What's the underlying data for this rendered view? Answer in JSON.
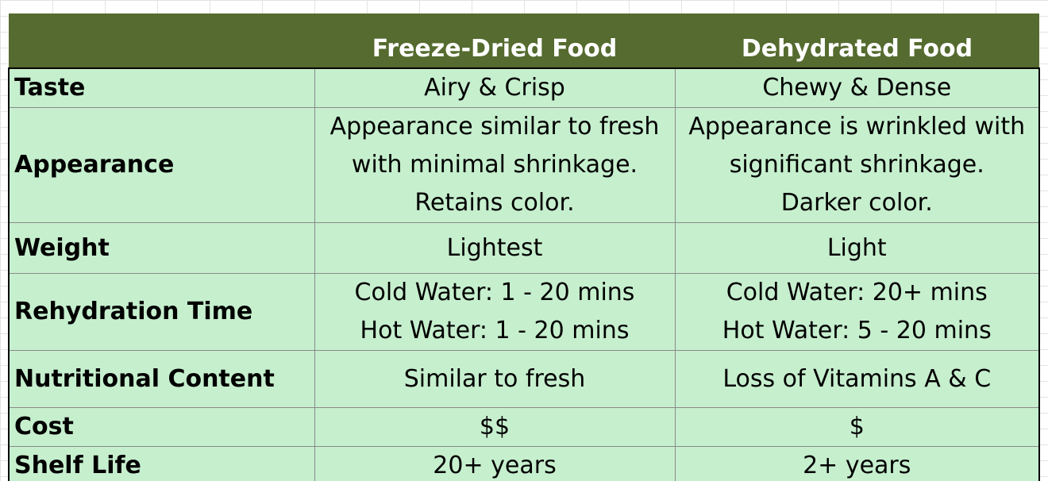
{
  "table": {
    "header": {
      "col1": "Freeze-Dried Food",
      "col2": "Dehydrated Food"
    },
    "rows": [
      {
        "label": "Taste",
        "freeze_dried": [
          "Airy & Crisp"
        ],
        "dehydrated": [
          "Chewy & Dense"
        ]
      },
      {
        "label": "Appearance",
        "freeze_dried": [
          "Appearance similar to fresh",
          "with minimal shrinkage.",
          "Retains color."
        ],
        "dehydrated": [
          "Appearance is wrinkled with",
          "significant shrinkage.",
          "Darker color."
        ]
      },
      {
        "label": "Weight",
        "freeze_dried": [
          "Lightest"
        ],
        "dehydrated": [
          "Light"
        ]
      },
      {
        "label": "Rehydration Time",
        "freeze_dried": [
          "Cold Water: 1 - 20 mins",
          "Hot Water: 1 - 20 mins"
        ],
        "dehydrated": [
          "Cold Water: 20+ mins",
          "Hot Water: 5 - 20 mins"
        ]
      },
      {
        "label": "Nutritional Content",
        "freeze_dried": [
          "Similar to fresh"
        ],
        "dehydrated": [
          "Loss of Vitamins A & C"
        ]
      },
      {
        "label": "Cost",
        "freeze_dried": [
          "$$"
        ],
        "dehydrated": [
          "$"
        ]
      },
      {
        "label": "Shelf Life",
        "freeze_dried": [
          "20+ years"
        ],
        "dehydrated": [
          "2+ years"
        ]
      }
    ]
  },
  "colors": {
    "header_bg": "#556b2f",
    "cell_bg": "#c6efce"
  }
}
